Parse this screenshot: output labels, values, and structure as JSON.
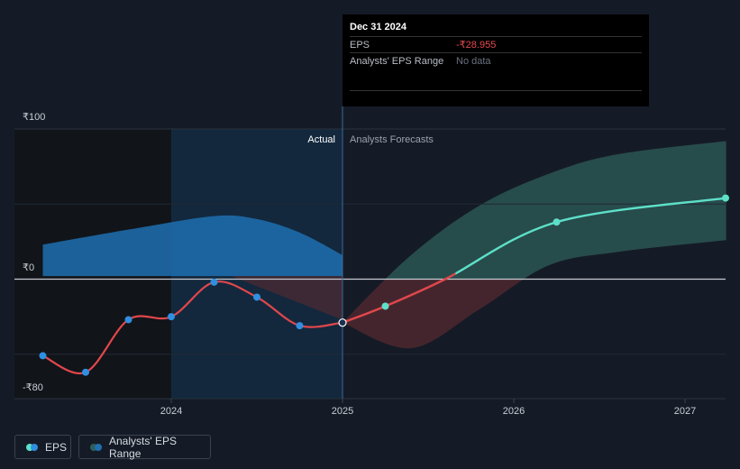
{
  "tooltip": {
    "date": "Dec 31 2024",
    "rows": [
      {
        "label": "EPS",
        "value": "-₹28.955"
      },
      {
        "label": "Analysts' EPS Range",
        "value": "No data"
      }
    ]
  },
  "legend": {
    "eps": "EPS",
    "range": "Analysts' EPS Range"
  },
  "colors": {
    "actual_line": "#e0474c",
    "forecast_line": "#5de0c8",
    "eps_dot": "#2f8fe0",
    "actual_band": "#1f6fb0",
    "forecast_band": "#2e5e5a",
    "neg_band": "#5a2a30"
  },
  "chart_data": {
    "type": "line",
    "y_unit": "₹",
    "ylim": [
      -80,
      100
    ],
    "y_ticks": [
      {
        "value": 100,
        "label": "₹100"
      },
      {
        "value": 0,
        "label": "₹0"
      },
      {
        "value": -80,
        "label": "-₹80"
      }
    ],
    "x_ticks": [
      {
        "value": 2024,
        "label": "2024"
      },
      {
        "value": 2025,
        "label": "2025"
      },
      {
        "value": 2026,
        "label": "2026"
      },
      {
        "value": 2027,
        "label": "2027"
      }
    ],
    "xlim": [
      2022.85,
      2027.24
    ],
    "divider": 2025.0,
    "divider_labels": {
      "left": "Actual",
      "right": "Analysts Forecasts"
    },
    "series": [
      {
        "name": "EPS",
        "kind": "actual",
        "points": [
          {
            "x": 2023.25,
            "y": -51
          },
          {
            "x": 2023.5,
            "y": -62
          },
          {
            "x": 2023.75,
            "y": -27
          },
          {
            "x": 2024.0,
            "y": -25
          },
          {
            "x": 2024.25,
            "y": -2
          },
          {
            "x": 2024.5,
            "y": -12
          },
          {
            "x": 2024.75,
            "y": -31
          },
          {
            "x": 2025.0,
            "y": -28.955
          }
        ]
      },
      {
        "name": "EPS",
        "kind": "forecast",
        "points": [
          {
            "x": 2025.0,
            "y": -28.955
          },
          {
            "x": 2025.25,
            "y": -18
          },
          {
            "x": 2025.6,
            "y": 0
          },
          {
            "x": 2026.25,
            "y": 38
          },
          {
            "x": 2027.24,
            "y": 54
          }
        ]
      }
    ],
    "past_range": {
      "x": [
        2023.25,
        2023.75,
        2024.25,
        2024.5,
        2024.75,
        2025.0
      ],
      "upper": [
        23,
        33,
        42,
        40,
        31,
        16
      ],
      "lower": [
        2,
        2,
        2,
        2,
        2,
        2
      ]
    },
    "forecast_range": {
      "x": [
        2025.0,
        2025.4,
        2025.8,
        2026.2,
        2026.6,
        2027.24
      ],
      "upper": [
        -28.955,
        16,
        49,
        70,
        83,
        92
      ],
      "lower": [
        -28.955,
        -46,
        -20,
        9,
        18,
        26
      ]
    }
  }
}
